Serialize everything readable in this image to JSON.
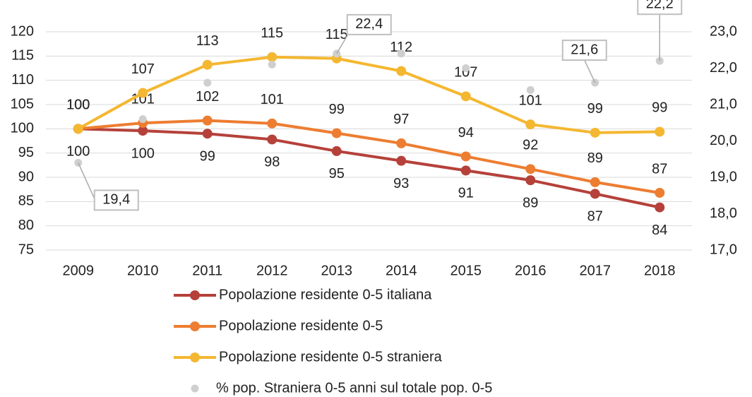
{
  "chart_data": {
    "type": "line",
    "categories": [
      "2009",
      "2010",
      "2011",
      "2012",
      "2013",
      "2014",
      "2015",
      "2016",
      "2017",
      "2018"
    ],
    "series": [
      {
        "name": "Popolazione residente 0-5 italiana",
        "color": "#b5413a",
        "values": [
          100,
          99.6,
          99,
          97.8,
          95.4,
          93.4,
          91.4,
          89.4,
          86.6,
          83.8
        ],
        "value_labels": [
          "100",
          "100",
          "99",
          "98",
          "95",
          "93",
          "91",
          "89",
          "87",
          "84"
        ]
      },
      {
        "name": "Popolazione residente 0-5",
        "color": "#ed7d31",
        "values": [
          100,
          101.2,
          101.7,
          101.1,
          99.1,
          97,
          94.3,
          91.7,
          89,
          86.8
        ],
        "value_labels": [
          "100",
          "101",
          "102",
          "101",
          "99",
          "97",
          "94",
          "92",
          "89",
          "87"
        ]
      },
      {
        "name": "Popolazione residente 0-5 straniera",
        "color": "#f4b731",
        "values": [
          100,
          107.4,
          113.2,
          114.8,
          114.5,
          111.9,
          106.7,
          100.9,
          99.2,
          99.4
        ],
        "value_labels": [
          "100",
          "107",
          "113",
          "115",
          "115",
          "112",
          "107",
          "101",
          "99",
          "99"
        ]
      },
      {
        "name": "% pop. Straniera 0-5 anni sul totale pop. 0-5",
        "color": "#cfcfcf",
        "axis": "y2",
        "marker_only": true,
        "values": [
          19.4,
          20.6,
          21.6,
          22.1,
          22.4,
          22.4,
          22.0,
          21.4,
          21.6,
          22.2
        ],
        "value_labels": [
          "19,4",
          null,
          null,
          null,
          "22,4",
          null,
          null,
          null,
          "21,6",
          "22,2"
        ]
      }
    ],
    "ylim": [
      75,
      120
    ],
    "yticks": [
      75,
      80,
      85,
      90,
      95,
      100,
      105,
      110,
      115,
      120
    ],
    "y2lim": [
      17,
      23
    ],
    "y2ticks": [
      {
        "value": 17,
        "label": "17,0"
      },
      {
        "value": 18,
        "label": "18,0"
      },
      {
        "value": 19,
        "label": "19,0"
      },
      {
        "value": 20,
        "label": "20,0"
      },
      {
        "value": 21,
        "label": "21,0"
      },
      {
        "value": 22,
        "label": "22,0"
      },
      {
        "value": 23,
        "label": "23,0"
      }
    ],
    "grid": true,
    "legend": "bottom"
  }
}
